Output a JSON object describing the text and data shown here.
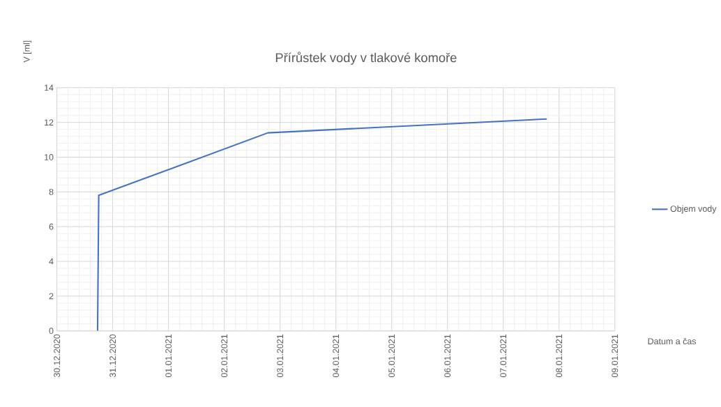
{
  "chart_data": {
    "type": "line",
    "title": "Přírůstek vody v tlakové komoře",
    "xlabel": "Datum a čas",
    "ylabel": "V [ml]",
    "x": [
      "2020-12-30T17:30",
      "2020-12-30T18:00",
      "2021-01-02T18:45",
      "2021-01-07T18:45"
    ],
    "series": [
      {
        "name": "Objem vody",
        "color": "#4472c4",
        "values": [
          0,
          7.8,
          11.4,
          12.2
        ]
      }
    ],
    "xlim": [
      "2020-12-30",
      "2021-01-09"
    ],
    "xticks": [
      {
        "value": "2020-12-30",
        "label": "30.12.2020"
      },
      {
        "value": "2020-12-31",
        "label": "31.12.2020"
      },
      {
        "value": "2021-01-01",
        "label": "01.01.2021"
      },
      {
        "value": "2021-01-02",
        "label": "02.01.2021"
      },
      {
        "value": "2021-01-03",
        "label": "03.01.2021"
      },
      {
        "value": "2021-01-04",
        "label": "04.01.2021"
      },
      {
        "value": "2021-01-05",
        "label": "05.01.2021"
      },
      {
        "value": "2021-01-06",
        "label": "06.01.2021"
      },
      {
        "value": "2021-01-07",
        "label": "07.01.2021"
      },
      {
        "value": "2021-01-08",
        "label": "08.01.2021"
      },
      {
        "value": "2021-01-09",
        "label": "09.01.2021"
      }
    ],
    "ylim": [
      0,
      14
    ],
    "yticks": [
      0,
      2,
      4,
      6,
      8,
      10,
      12,
      14
    ],
    "grid": true,
    "legend": "right",
    "marker": "none",
    "line_style": "solid"
  }
}
